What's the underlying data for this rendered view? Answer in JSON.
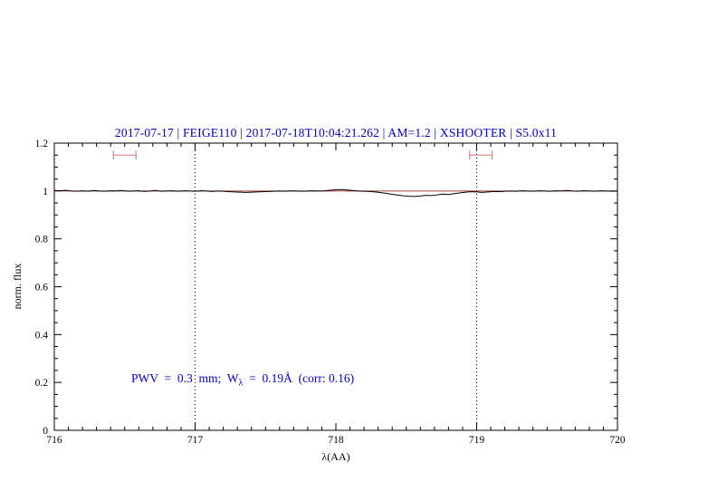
{
  "chart_data": {
    "type": "line",
    "title": "2017-07-17 | FEIGE110 | 2017-07-18T10:04:21.262 | AM=1.2 | XSHOOTER | S5.0x11",
    "xlabel": "λ(AA)",
    "ylabel": "norm. flux",
    "xlim": [
      716,
      720
    ],
    "ylim": [
      0,
      1.2
    ],
    "grid": false,
    "x_ticks": [
      716,
      717,
      718,
      719,
      720
    ],
    "x_tick_labels": [
      "716",
      "717",
      "718",
      "719",
      "720"
    ],
    "y_ticks": [
      0,
      0.2,
      0.4,
      0.6,
      0.8,
      1,
      1.2
    ],
    "y_tick_labels": [
      "0",
      "0.2",
      "0.4",
      "0.6",
      "0.8",
      "1",
      "1.2"
    ],
    "x_minor_step": 0.1,
    "y_minor_step": 0.05,
    "dotted_vlines": [
      717,
      719
    ],
    "series": [
      {
        "name": "model-fit-line",
        "color": "#b04040",
        "x": [
          716,
          720
        ],
        "values": [
          1.0,
          1.0
        ]
      },
      {
        "name": "observed-spectrum-line",
        "color": "#000000",
        "x_start": 716.0,
        "x_step": 0.04,
        "values": [
          1.002,
          1.001,
          1.003,
          1.0,
          0.999,
          1.001,
          0.999,
          1.002,
          1.0,
          0.999,
          1.001,
          1.0,
          1.002,
          0.999,
          1.0,
          1.001,
          0.998,
          1.0,
          1.002,
          0.999,
          1.0,
          1.001,
          0.999,
          1.001,
          1.0,
          0.999,
          1.001,
          1.0,
          0.998,
          1.0,
          0.999,
          0.997,
          0.996,
          0.995,
          0.994,
          0.995,
          0.996,
          0.997,
          0.998,
          0.999,
          1.0,
          0.999,
          1.001,
          1.0,
          0.999,
          1.0,
          1.001,
          1.0,
          1.001,
          1.003,
          1.005,
          1.006,
          1.004,
          1.002,
          1.0,
          0.999,
          0.998,
          0.996,
          0.993,
          0.99,
          0.986,
          0.983,
          0.98,
          0.978,
          0.977,
          0.979,
          0.982,
          0.981,
          0.984,
          0.987,
          0.985,
          0.989,
          0.992,
          0.995,
          0.997,
          0.996,
          0.994,
          0.996,
          0.998,
          0.997,
          0.999,
          1.0,
          0.999,
          1.001,
          1.0,
          0.999,
          1.001,
          1.0,
          0.999,
          1.001,
          1.0,
          1.002,
          1.0,
          0.999,
          1.001,
          1.0,
          0.999,
          1.001,
          1.0,
          0.999,
          1.0
        ]
      }
    ],
    "interval_markers": {
      "color": "#d98080",
      "y": 1.15,
      "ranges": [
        [
          716.42,
          716.58
        ],
        [
          718.95,
          719.11
        ]
      ]
    },
    "annotation": {
      "prefix": "PWV  =  0.3  mm;  W",
      "sub": "λ",
      "suffix": "  =  0.19Å  (corr: 0.16)",
      "color": "#0000cd"
    },
    "colors": {
      "axis": "#000000",
      "title": "#0000cd"
    }
  }
}
